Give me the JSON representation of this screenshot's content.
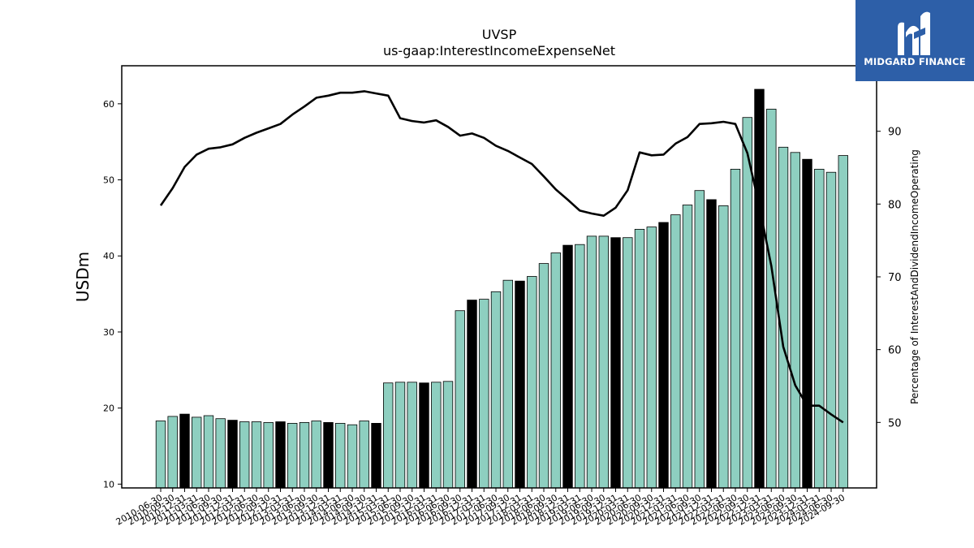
{
  "chart_data": {
    "type": "bar",
    "title": "UVSP",
    "subtitle": "us-gaap:InterestIncomeExpenseNet",
    "ylabel": "USDm",
    "y2label": "Percentage of InterestAndDividendIncomeOperating",
    "ylim": [
      9.5,
      65
    ],
    "y2lim": [
      41,
      99
    ],
    "yticks": [
      10,
      20,
      30,
      40,
      50,
      60
    ],
    "y2ticks": [
      50,
      60,
      70,
      80,
      90
    ],
    "categories": [
      "2010-06-30",
      "2010-09-30",
      "2010-12-31",
      "2011-03-31",
      "2011-06-30",
      "2011-09-30",
      "2011-12-31",
      "2012-03-31",
      "2012-06-30",
      "2012-09-30",
      "2012-12-31",
      "2013-03-31",
      "2013-06-30",
      "2013-09-30",
      "2013-12-31",
      "2014-03-31",
      "2014-06-30",
      "2014-09-30",
      "2014-12-31",
      "2015-03-31",
      "2015-06-30",
      "2015-09-30",
      "2015-12-31",
      "2016-03-31",
      "2016-06-30",
      "2016-09-30",
      "2016-12-31",
      "2017-03-31",
      "2017-06-30",
      "2017-09-30",
      "2017-12-31",
      "2018-03-31",
      "2018-06-30",
      "2018-09-30",
      "2018-12-31",
      "2019-03-31",
      "2019-06-30",
      "2019-09-30",
      "2019-12-31",
      "2020-03-31",
      "2020-06-30",
      "2020-09-30",
      "2020-12-31",
      "2021-03-31",
      "2021-06-30",
      "2021-09-30",
      "2021-12-31",
      "2022-03-31",
      "2022-06-30",
      "2022-09-30",
      "2022-12-31",
      "2023-03-31",
      "2023-06-30",
      "2023-09-30",
      "2023-12-31",
      "2024-03-31",
      "2024-06-30",
      "2024-09-30"
    ],
    "series": [
      {
        "kind": "bar",
        "values": [
          18.3,
          18.9,
          19.2,
          18.8,
          19.0,
          18.6,
          18.4,
          18.2,
          18.2,
          18.1,
          18.2,
          18.0,
          18.1,
          18.3,
          18.1,
          18.0,
          17.8,
          18.3,
          18.0,
          23.3,
          23.4,
          23.4,
          23.3,
          23.4,
          23.5,
          32.8,
          34.2,
          34.3,
          35.3,
          36.8,
          36.7,
          37.3,
          39.0,
          40.4,
          41.4,
          41.5,
          42.6,
          42.6,
          42.4,
          42.4,
          43.5,
          43.8,
          44.4,
          45.4,
          46.7,
          48.6,
          47.4,
          46.6,
          51.4,
          58.2,
          61.9,
          59.3,
          54.3,
          53.6,
          52.7,
          51.4,
          51.0,
          53.2
        ],
        "highlight_color": "#000000",
        "color": "#8ecfc0"
      },
      {
        "kind": "line",
        "axis": "right",
        "color": "#000000",
        "values": [
          79.8,
          82.2,
          85.1,
          86.8,
          87.6,
          87.8,
          88.2,
          89.1,
          89.8,
          90.4,
          91.0,
          92.3,
          93.4,
          94.6,
          94.9,
          95.3,
          95.3,
          95.5,
          95.2,
          94.9,
          91.8,
          91.4,
          91.2,
          91.5,
          90.6,
          89.4,
          89.7,
          89.1,
          88.0,
          87.3,
          86.4,
          85.5,
          83.8,
          82.0,
          80.6,
          79.1,
          78.7,
          78.4,
          79.5,
          81.9,
          87.1,
          86.7,
          86.8,
          88.3,
          89.2,
          91.0,
          91.1,
          91.3,
          91.0,
          87.0,
          79.7,
          71.5,
          60.4,
          55.1,
          52.3,
          52.3,
          51.1,
          50.0
        ]
      }
    ],
    "highlight_indices": [
      2,
      6,
      10,
      14,
      18,
      22,
      26,
      30,
      34,
      38,
      42,
      46,
      50,
      54
    ]
  },
  "logo": {
    "text": "MIDGARD FINANCE",
    "icon": "midgard-logo-icon"
  }
}
